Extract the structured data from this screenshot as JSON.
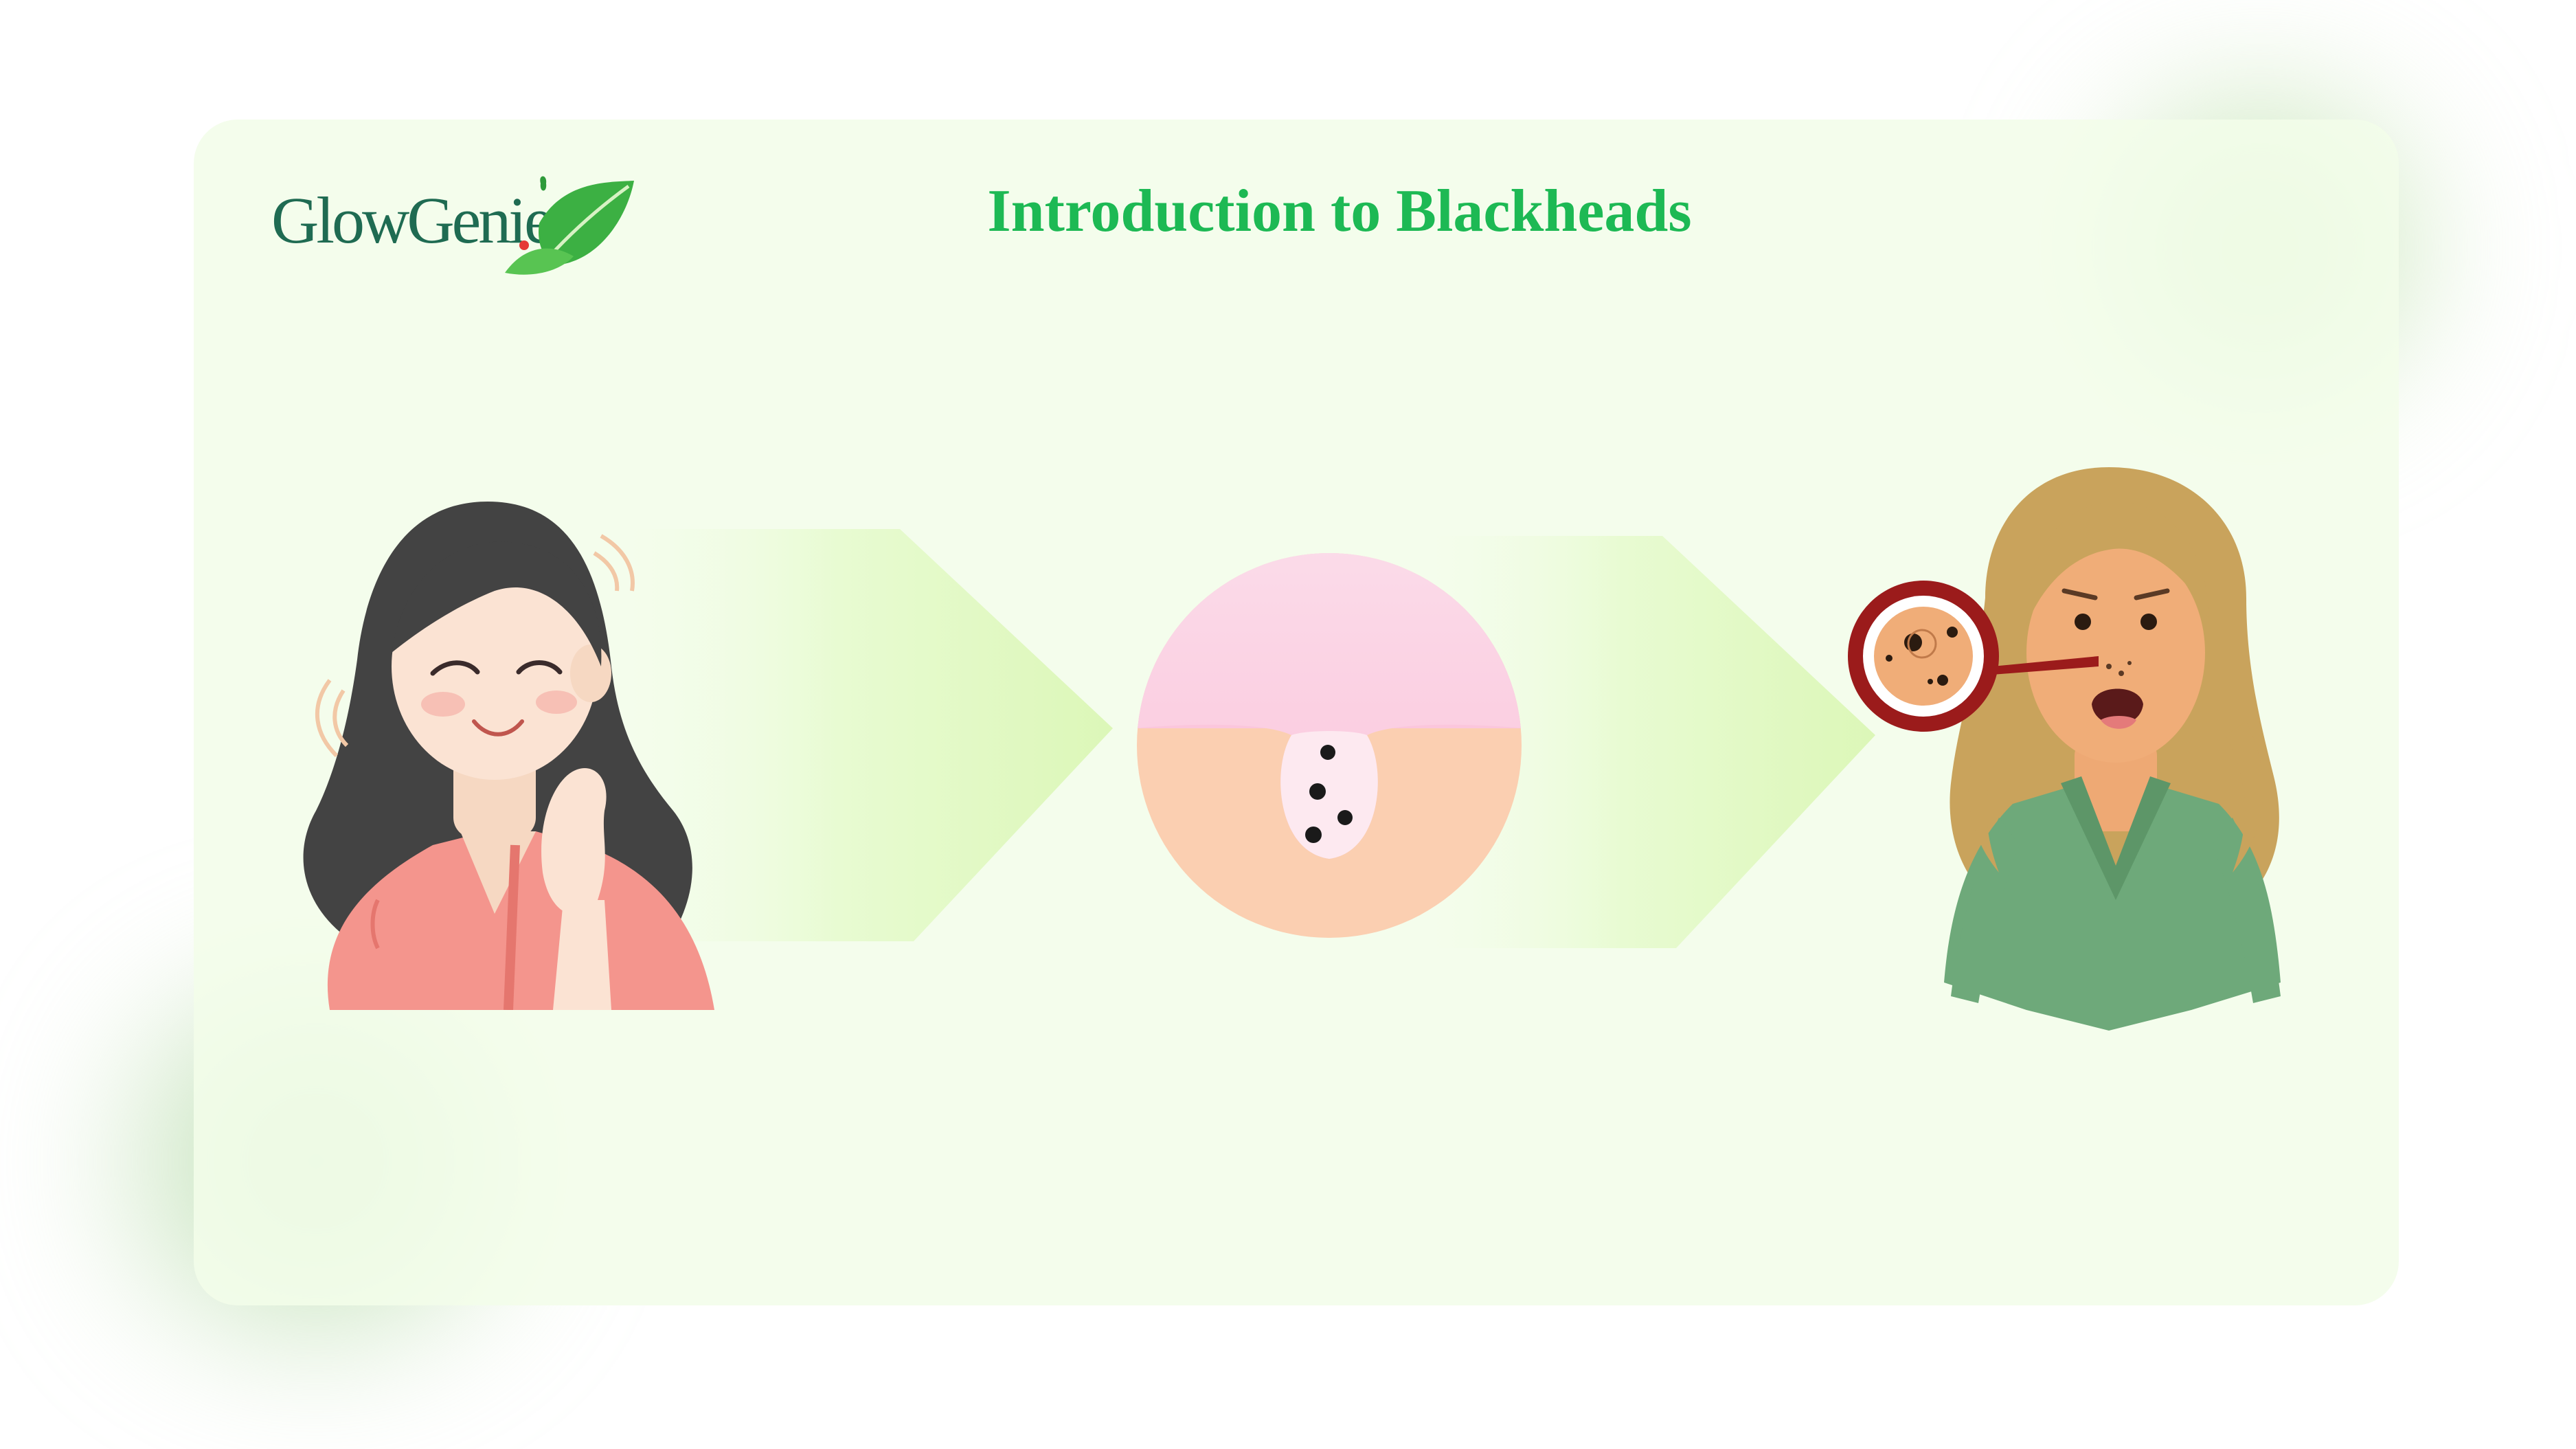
{
  "brand": {
    "name": "GlowGenie"
  },
  "header": {
    "title": "Introduction to Blackheads"
  },
  "colors": {
    "title": "#1db954",
    "brand_text": "#1f6b52",
    "leaf": "#3cb043",
    "card_background": "#f3fde9",
    "arrow": "#e4f9c8",
    "pore_skin": "#fbcfb1",
    "pore_top": "#fbd0e6",
    "magnifier_ring": "#9b1b1b"
  },
  "icons": {
    "logo": "leaf-icon",
    "step_arrows": "chevron-arrow-icon"
  }
}
